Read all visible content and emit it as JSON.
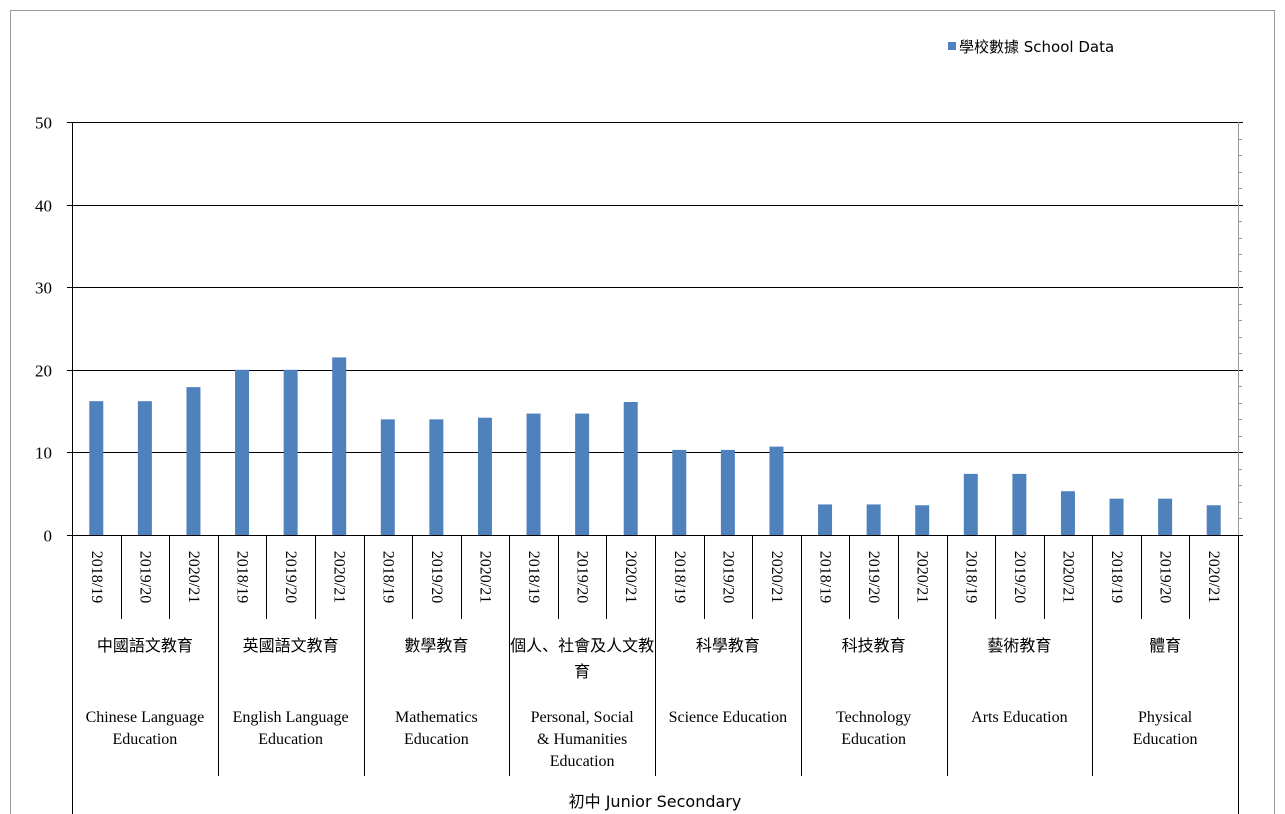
{
  "chart_data": {
    "type": "bar",
    "y_axis": {
      "min": 0,
      "max": 50,
      "major_step": 10,
      "minor_step": 2,
      "tick_labels": [
        "0",
        "10",
        "20",
        "30",
        "40",
        "50"
      ]
    },
    "grid": true,
    "legend": {
      "position": "top-right",
      "label": "學校數據 School Data",
      "color": "#4f81bd"
    },
    "series": [
      {
        "name": "學校數據 School Data",
        "color": "#4f81bd",
        "values": [
          16.2,
          16.2,
          17.9,
          20.0,
          20.0,
          21.5,
          14.0,
          14.0,
          14.2,
          14.7,
          14.7,
          16.1,
          10.3,
          10.3,
          10.7,
          3.7,
          3.7,
          3.6,
          7.4,
          7.4,
          5.3,
          4.4,
          4.4,
          3.6
        ]
      }
    ],
    "categories": [
      "2018/19",
      "2019/20",
      "2020/21",
      "2018/19",
      "2019/20",
      "2020/21",
      "2018/19",
      "2019/20",
      "2020/21",
      "2018/19",
      "2019/20",
      "2020/21",
      "2018/19",
      "2019/20",
      "2020/21",
      "2018/19",
      "2019/20",
      "2020/21",
      "2018/19",
      "2019/20",
      "2020/21",
      "2018/19",
      "2019/20",
      "2020/21"
    ],
    "groups": [
      {
        "zh": "中國語文教育",
        "en": "Chinese Language Education"
      },
      {
        "zh": "英國語文教育",
        "en": "English Language Education"
      },
      {
        "zh": "數學教育",
        "en": "Mathematics Education"
      },
      {
        "zh": "個人、社會及人文教育",
        "en": "Personal, Social & Humanities Education"
      },
      {
        "zh": "科學教育",
        "en": "Science Education"
      },
      {
        "zh": "科技教育",
        "en": "Technology Education"
      },
      {
        "zh": "藝術教育",
        "en": "Arts Education"
      },
      {
        "zh": "體育",
        "en": "Physical Education"
      }
    ],
    "level_label": "初中 Junior Secondary"
  }
}
